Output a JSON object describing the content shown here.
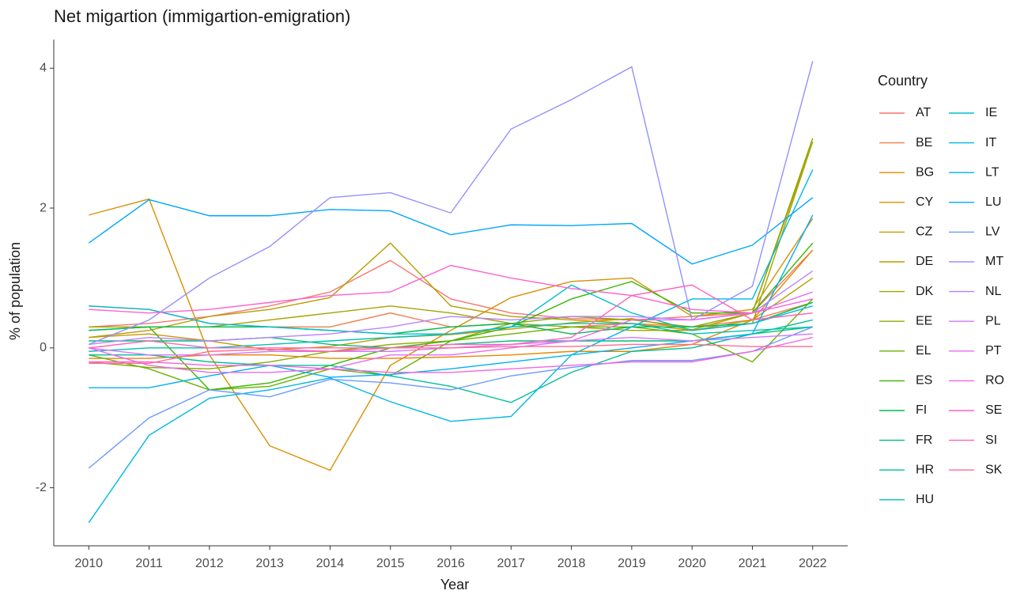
{
  "chart_data": {
    "type": "line",
    "title": "Net migartion (immigartion-emigration)",
    "x_label": "Year",
    "y_label": "% of population",
    "legend_title": "Country",
    "legend_position": "right",
    "x": [
      2010,
      2011,
      2012,
      2013,
      2014,
      2015,
      2016,
      2017,
      2018,
      2019,
      2020,
      2021,
      2022
    ],
    "xlim": [
      2009.42,
      2022.58
    ],
    "xticks": [
      2010,
      2011,
      2012,
      2013,
      2014,
      2015,
      2016,
      2017,
      2018,
      2019,
      2020,
      2021,
      2022
    ],
    "ylim": [
      -2.83,
      4.41
    ],
    "yticks": [
      -2,
      0,
      2,
      4
    ],
    "grid": false,
    "series": [
      {
        "name": "AT",
        "color": "#F8766D",
        "values": [
          0.3,
          0.35,
          0.45,
          0.6,
          0.8,
          1.25,
          0.7,
          0.5,
          0.42,
          0.4,
          0.45,
          0.5,
          1.4
        ]
      },
      {
        "name": "BE",
        "color": "#F07F4C",
        "values": [
          0.6,
          0.55,
          0.35,
          0.3,
          0.3,
          0.5,
          0.3,
          0.35,
          0.3,
          0.35,
          0.3,
          0.4,
          0.65
        ]
      },
      {
        "name": "BG",
        "color": "#E58700",
        "values": [
          -0.15,
          -0.15,
          -0.1,
          -0.1,
          -0.15,
          -0.15,
          -0.13,
          -0.1,
          -0.05,
          -0.05,
          0.05,
          0.4,
          1.4
        ]
      },
      {
        "name": "CY",
        "color": "#D89000",
        "values": [
          1.9,
          2.13,
          -0.1,
          -1.4,
          -1.75,
          -0.25,
          0.25,
          0.72,
          0.95,
          1.0,
          0.45,
          0.55,
          1.85
        ]
      },
      {
        "name": "CZ",
        "color": "#C99800",
        "values": [
          0.15,
          0.2,
          0.1,
          -0.03,
          0.02,
          0.15,
          0.19,
          0.27,
          0.36,
          0.42,
          0.26,
          0.5,
          2.95
        ]
      },
      {
        "name": "DE",
        "color": "#B79F00",
        "values": [
          0.15,
          0.25,
          0.45,
          0.55,
          0.72,
          1.5,
          0.6,
          0.45,
          0.4,
          0.35,
          0.25,
          0.4,
          1.0
        ]
      },
      {
        "name": "DK",
        "color": "#A3A500",
        "values": [
          0.3,
          0.3,
          0.3,
          0.4,
          0.5,
          0.6,
          0.5,
          0.35,
          0.3,
          0.25,
          0.25,
          0.35,
          2.95
        ]
      },
      {
        "name": "EE",
        "color": "#8BAB00",
        "values": [
          -0.2,
          -0.28,
          -0.3,
          -0.2,
          -0.05,
          0.05,
          0.1,
          0.35,
          0.45,
          0.4,
          0.3,
          0.5,
          3.0
        ]
      },
      {
        "name": "EL",
        "color": "#6BB100",
        "values": [
          -0.1,
          -0.3,
          -0.6,
          -0.55,
          -0.3,
          -0.4,
          0.1,
          0.2,
          0.3,
          0.3,
          0.2,
          -0.2,
          0.7
        ]
      },
      {
        "name": "ES",
        "color": "#39B600",
        "values": [
          0.25,
          0.3,
          -0.6,
          -0.5,
          -0.25,
          0.0,
          0.1,
          0.3,
          0.7,
          0.95,
          0.5,
          0.5,
          1.5
        ]
      },
      {
        "name": "FI",
        "color": "#00BB4E",
        "values": [
          0.25,
          0.3,
          0.3,
          0.3,
          0.25,
          0.2,
          0.3,
          0.35,
          0.2,
          0.3,
          0.3,
          0.35,
          0.65
        ]
      },
      {
        "name": "FR",
        "color": "#00BF76",
        "values": [
          0.1,
          0.1,
          0.1,
          0.15,
          0.05,
          0.0,
          0.05,
          0.1,
          0.1,
          0.1,
          0.1,
          0.2,
          0.3
        ]
      },
      {
        "name": "HR",
        "color": "#00C097",
        "values": [
          -0.1,
          -0.1,
          -0.2,
          -0.25,
          -0.25,
          -0.4,
          -0.55,
          -0.78,
          -0.35,
          -0.05,
          0.0,
          0.2,
          0.4
        ]
      },
      {
        "name": "HU",
        "color": "#00C0B5",
        "values": [
          -0.05,
          0.0,
          0.0,
          0.05,
          0.1,
          0.15,
          0.2,
          0.3,
          0.35,
          0.35,
          0.2,
          0.25,
          0.3
        ]
      },
      {
        "name": "IE",
        "color": "#00BDD0",
        "values": [
          0.6,
          0.55,
          0.35,
          0.3,
          0.25,
          0.2,
          0.2,
          0.3,
          0.9,
          0.5,
          0.25,
          0.35,
          0.6
        ]
      },
      {
        "name": "IT",
        "color": "#00B8E5",
        "values": [
          -2.5,
          -1.25,
          -0.72,
          -0.6,
          -0.43,
          -0.77,
          -1.05,
          -0.98,
          -0.1,
          0.3,
          0.7,
          0.7,
          2.55
        ]
      },
      {
        "name": "LT",
        "color": "#00B0F6",
        "values": [
          -0.57,
          -0.57,
          -0.4,
          -0.25,
          -0.42,
          -0.38,
          -0.3,
          -0.2,
          -0.1,
          0.0,
          0.1,
          0.2,
          1.9
        ]
      },
      {
        "name": "LU",
        "color": "#00A5FF",
        "values": [
          1.5,
          2.12,
          1.89,
          1.89,
          1.98,
          1.96,
          1.62,
          1.76,
          1.75,
          1.78,
          1.2,
          1.47,
          2.15
        ]
      },
      {
        "name": "LV",
        "color": "#6A9BFF",
        "values": [
          -1.72,
          -1.0,
          -0.6,
          -0.7,
          -0.45,
          -0.5,
          -0.6,
          -0.4,
          -0.28,
          -0.18,
          -0.18,
          -0.05,
          0.3
        ]
      },
      {
        "name": "MT",
        "color": "#9590FF",
        "values": [
          0.05,
          0.4,
          1.0,
          1.45,
          2.15,
          2.22,
          1.93,
          3.13,
          3.55,
          4.02,
          0.4,
          0.88,
          4.1
        ]
      },
      {
        "name": "NL",
        "color": "#B983FF",
        "values": [
          0.05,
          0.15,
          0.1,
          0.15,
          0.2,
          0.3,
          0.45,
          0.4,
          0.45,
          0.45,
          0.4,
          0.5,
          1.1
        ]
      },
      {
        "name": "PL",
        "color": "#D376FF",
        "values": [
          0.0,
          -0.1,
          -0.1,
          -0.05,
          -0.05,
          -0.05,
          0.0,
          0.05,
          0.1,
          0.15,
          0.1,
          0.15,
          0.2
        ]
      },
      {
        "name": "PT",
        "color": "#E76BF3",
        "values": [
          0.0,
          -0.25,
          -0.35,
          -0.35,
          -0.3,
          -0.1,
          -0.1,
          0.0,
          0.1,
          0.4,
          0.4,
          0.5,
          0.8
        ]
      },
      {
        "name": "RO",
        "color": "#F564E3",
        "values": [
          -0.2,
          -0.2,
          -0.25,
          -0.25,
          -0.3,
          -0.35,
          -0.35,
          -0.3,
          -0.25,
          -0.2,
          -0.2,
          -0.05,
          0.15
        ]
      },
      {
        "name": "SE",
        "color": "#FD61D1",
        "values": [
          0.55,
          0.5,
          0.55,
          0.65,
          0.75,
          0.8,
          1.18,
          1.0,
          0.85,
          0.75,
          0.55,
          0.5,
          0.7
        ]
      },
      {
        "name": "SI",
        "color": "#FF62BC",
        "values": [
          0.0,
          0.1,
          0.0,
          0.0,
          0.0,
          0.0,
          0.05,
          0.05,
          0.15,
          0.75,
          0.9,
          0.4,
          0.5
        ]
      },
      {
        "name": "SK",
        "color": "#FF6C91",
        "values": [
          -0.22,
          -0.22,
          -0.05,
          -0.02,
          -0.05,
          0.0,
          0.0,
          0.02,
          0.02,
          0.05,
          0.05,
          0.02,
          0.02
        ]
      }
    ]
  }
}
